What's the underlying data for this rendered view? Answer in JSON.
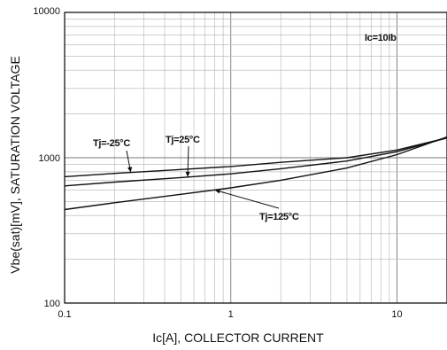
{
  "chart_data": {
    "type": "line",
    "xscale": "log",
    "yscale": "log",
    "xlim": [
      0.1,
      20
    ],
    "ylim": [
      100,
      10000
    ],
    "xlabel": "Ic[A], COLLECTOR CURRENT",
    "ylabel": "Vbe(sat)[mV], SATURATION VOLTAGE",
    "xticks": [
      0.1,
      1,
      10
    ],
    "xtick_labels": [
      "0.1",
      "1",
      "10"
    ],
    "yticks": [
      100,
      1000,
      10000
    ],
    "ytick_labels": [
      "100",
      "1000",
      "10000"
    ],
    "grid": true,
    "condition_label": "Ic=10Ib",
    "series": [
      {
        "name": "Tj=-25°C",
        "x": [
          0.1,
          0.2,
          0.5,
          1,
          2,
          5,
          10,
          20
        ],
        "y": [
          740,
          780,
          830,
          870,
          930,
          1000,
          1130,
          1370
        ]
      },
      {
        "name": "Tj=25°C",
        "x": [
          0.1,
          0.2,
          0.5,
          1,
          2,
          5,
          10,
          20
        ],
        "y": [
          640,
          680,
          730,
          775,
          840,
          950,
          1100,
          1370
        ]
      },
      {
        "name": "Tj=125°C",
        "x": [
          0.1,
          0.2,
          0.5,
          1,
          2,
          5,
          10,
          20
        ],
        "y": [
          440,
          490,
          560,
          620,
          700,
          850,
          1050,
          1390
        ]
      }
    ]
  }
}
